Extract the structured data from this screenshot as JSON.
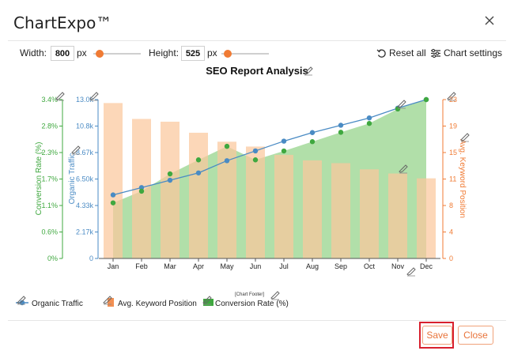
{
  "app": {
    "title": "ChartExpo™"
  },
  "toolbar": {
    "width_label": "Width:",
    "width_value": "800",
    "width_unit": "px",
    "height_label": "Height:",
    "height_value": "525",
    "height_unit": "px",
    "reset_label": "Reset all",
    "settings_label": "Chart settings"
  },
  "footer": {
    "save_label": "Save",
    "close_label": "Close"
  },
  "colors": {
    "traffic": "#4a8bc4",
    "keyword": "#fbc89c",
    "conversion": "#3fa83f",
    "conversion_area": "#a8dca0",
    "accent": "#f07b34",
    "save_highlight": "#d8202e"
  },
  "chart_data": {
    "type": "bar",
    "title": "SEO Report Analysis",
    "footer_note": "[Chart Footer]",
    "categories": [
      "Jan",
      "Feb",
      "Mar",
      "Apr",
      "May",
      "Jun",
      "Jul",
      "Aug",
      "Sep",
      "Oct",
      "Nov",
      "Dec"
    ],
    "axes": {
      "conversion": {
        "label": "Conversion Rate (%)",
        "ticks": [
          "0%",
          "0.6%",
          "1.1%",
          "1.7%",
          "2.3%",
          "2.8%",
          "3.4%"
        ],
        "min": 0,
        "max": 3.4
      },
      "traffic": {
        "label": "Organic Traffic",
        "ticks": [
          "0",
          "2.17k",
          "4.33k",
          "6.50k",
          "8.67k",
          "10.8k",
          "13.0k"
        ],
        "min": 0,
        "max": 13000
      },
      "keyword": {
        "label": "Avg. Keyword Position",
        "ticks": [
          "0",
          "4",
          "8",
          "11",
          "15",
          "19",
          "23"
        ],
        "min": 0,
        "max": 23
      }
    },
    "series": [
      {
        "name": "Organic Traffic",
        "kind": "line",
        "axis": "traffic",
        "values": [
          5200,
          5800,
          6400,
          7000,
          8000,
          8800,
          9600,
          10300,
          10900,
          11500,
          12300,
          13000
        ]
      },
      {
        "name": "Avg. Keyword Position",
        "kind": "bar",
        "axis": "keyword",
        "values": [
          22.5,
          20.2,
          19.8,
          18.2,
          16.9,
          16.2,
          15,
          14.2,
          13.8,
          12.9,
          12.3,
          11.6
        ]
      },
      {
        "name": "Conversion Rate (%)",
        "kind": "area",
        "axis": "conversion",
        "values": [
          1.19,
          1.44,
          1.81,
          2.11,
          2.4,
          2.11,
          2.3,
          2.5,
          2.7,
          2.89,
          3.2,
          3.4
        ]
      }
    ],
    "legend_position": "bottom-left",
    "grid": false
  }
}
